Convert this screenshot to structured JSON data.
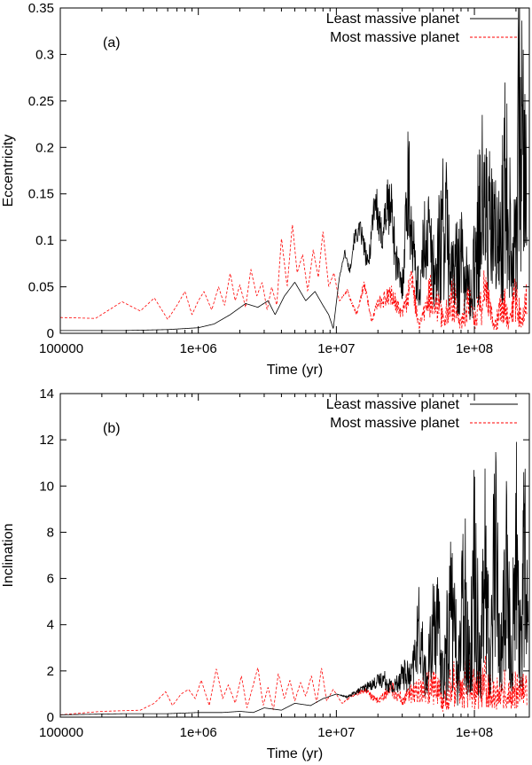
{
  "chart_data": [
    {
      "type": "line",
      "panel_label": "(a)",
      "xlabel": "Time (yr)",
      "ylabel": "Eccentricity",
      "xscale": "log",
      "xlim": [
        100000,
        250000000
      ],
      "ylim": [
        0,
        0.35
      ],
      "xticks": [
        100000,
        1000000,
        10000000,
        100000000
      ],
      "xtick_labels": [
        "100000",
        "1e+06",
        "1e+07",
        "1e+08"
      ],
      "yticks": [
        0,
        0.05,
        0.1,
        0.15,
        0.2,
        0.25,
        0.3,
        0.35
      ],
      "ytick_labels": [
        "0",
        "0.05",
        "0.1",
        "0.15",
        "0.2",
        "0.25",
        "0.3",
        "0.35"
      ],
      "grid": false,
      "legend_position": "top-right",
      "series": [
        {
          "name": "Least massive planet",
          "color": "#000000",
          "dash": "solid",
          "x": [
            100000,
            300000,
            600000,
            1000000,
            1300000,
            1700000,
            2200000,
            2700000,
            3200000,
            3600000,
            4200000,
            5000000,
            6000000,
            7000000,
            8000000,
            8800000,
            9500000,
            10500000,
            11500000,
            12500000,
            13500000,
            15000000,
            17000000,
            19000000,
            21000000,
            23000000,
            25000000,
            27000000,
            30000000,
            33000000,
            36000000,
            40000000,
            45000000,
            52000000,
            60000000,
            70000000,
            80000000,
            95000000,
            110000000,
            130000000,
            150000000,
            170000000,
            190000000,
            210000000,
            230000000,
            240000000
          ],
          "values": [
            0.003,
            0.003,
            0.004,
            0.006,
            0.01,
            0.02,
            0.032,
            0.028,
            0.035,
            0.02,
            0.04,
            0.055,
            0.035,
            0.045,
            0.03,
            0.02,
            0.005,
            0.06,
            0.09,
            0.07,
            0.11,
            0.12,
            0.08,
            0.17,
            0.12,
            0.16,
            0.17,
            0.1,
            0.06,
            0.22,
            0.12,
            0.06,
            0.17,
            0.09,
            0.2,
            0.1,
            0.13,
            0.06,
            0.23,
            0.18,
            0.14,
            0.27,
            0.13,
            0.34,
            0.32,
            0.15
          ]
        },
        {
          "name": "Most massive planet",
          "color": "#ff0000",
          "dash": "dashed",
          "x": [
            100000,
            180000,
            280000,
            380000,
            480000,
            600000,
            700000,
            800000,
            900000,
            1000000,
            1100000,
            1250000,
            1400000,
            1550000,
            1700000,
            1850000,
            2000000,
            2200000,
            2400000,
            2650000,
            2900000,
            3150000,
            3400000,
            3700000,
            4000000,
            4400000,
            4800000,
            5200000,
            5700000,
            6200000,
            6800000,
            7400000,
            8000000,
            8800000,
            9600000,
            10500000,
            12000000,
            14000000,
            16000000,
            18000000,
            20000000,
            25000000,
            30000000,
            35000000,
            40000000,
            50000000,
            60000000,
            70000000,
            80000000,
            90000000,
            100000000,
            120000000,
            140000000,
            160000000,
            180000000,
            200000000,
            220000000,
            240000000
          ],
          "values": [
            0.017,
            0.016,
            0.034,
            0.024,
            0.038,
            0.015,
            0.03,
            0.045,
            0.02,
            0.035,
            0.045,
            0.025,
            0.05,
            0.03,
            0.065,
            0.035,
            0.052,
            0.028,
            0.069,
            0.04,
            0.055,
            0.025,
            0.05,
            0.03,
            0.103,
            0.05,
            0.118,
            0.065,
            0.085,
            0.045,
            0.09,
            0.06,
            0.11,
            0.05,
            0.065,
            0.035,
            0.048,
            0.022,
            0.06,
            0.015,
            0.038,
            0.05,
            0.025,
            0.07,
            0.01,
            0.075,
            0.02,
            0.065,
            0.015,
            0.06,
            0.02,
            0.075,
            0.01,
            0.06,
            0.02,
            0.068,
            0.015,
            0.055
          ]
        }
      ]
    },
    {
      "type": "line",
      "panel_label": "(b)",
      "xlabel": "Time (yr)",
      "ylabel": "Inclination",
      "xscale": "log",
      "xlim": [
        100000,
        250000000
      ],
      "ylim": [
        0,
        14
      ],
      "xticks": [
        100000,
        1000000,
        10000000,
        100000000
      ],
      "xtick_labels": [
        "100000",
        "1e+06",
        "1e+07",
        "1e+08"
      ],
      "yticks": [
        0,
        2,
        4,
        6,
        8,
        10,
        12,
        14
      ],
      "ytick_labels": [
        "0",
        "2",
        "4",
        "6",
        "8",
        "10",
        "12",
        "14"
      ],
      "grid": false,
      "legend_position": "top-right",
      "series": [
        {
          "name": "Least massive planet",
          "color": "#000000",
          "dash": "solid",
          "x": [
            100000,
            300000,
            600000,
            1000000,
            1500000,
            2000000,
            2500000,
            3000000,
            4000000,
            5000000,
            6500000,
            8000000,
            10000000,
            12000000,
            15000000,
            18000000,
            22000000,
            26000000,
            30000000,
            35000000,
            40000000,
            45000000,
            52000000,
            60000000,
            68000000,
            76000000,
            85000000,
            92000000,
            100000000,
            110000000,
            120000000,
            130000000,
            140000000,
            155000000,
            170000000,
            185000000,
            200000000,
            215000000,
            230000000,
            245000000
          ],
          "values": [
            0.1,
            0.15,
            0.15,
            0.2,
            0.2,
            0.25,
            0.2,
            0.4,
            0.3,
            0.6,
            0.5,
            0.8,
            1.0,
            0.9,
            1.3,
            1.6,
            2.0,
            1.5,
            2.5,
            2.2,
            5.5,
            2.0,
            7.0,
            2.5,
            8.6,
            3.0,
            9.5,
            3.5,
            11.0,
            4.0,
            10.5,
            3.0,
            13.1,
            4.0,
            10.0,
            3.5,
            12.2,
            4.5,
            11.5,
            5.0
          ]
        },
        {
          "name": "Most massive planet",
          "color": "#ff0000",
          "dash": "dashed",
          "x": [
            100000,
            200000,
            380000,
            480000,
            580000,
            650000,
            750000,
            850000,
            950000,
            1050000,
            1200000,
            1350000,
            1500000,
            1650000,
            1850000,
            2050000,
            2250000,
            2450000,
            2700000,
            2950000,
            3200000,
            3500000,
            3800000,
            4200000,
            4600000,
            5000000,
            5500000,
            6000000,
            6600000,
            7200000,
            7800000,
            8500000,
            9500000,
            11000000,
            13000000,
            16000000,
            20000000,
            25000000,
            30000000,
            40000000,
            50000000,
            60000000,
            70000000,
            80000000,
            90000000,
            100000000,
            120000000,
            140000000,
            160000000,
            180000000,
            200000000,
            220000000,
            240000000
          ],
          "values": [
            0.1,
            0.25,
            0.3,
            0.6,
            1.1,
            0.5,
            1.0,
            1.2,
            0.8,
            1.6,
            0.5,
            2.1,
            0.8,
            1.4,
            0.6,
            1.8,
            0.4,
            1.2,
            2.15,
            0.5,
            1.3,
            0.3,
            1.9,
            0.8,
            1.6,
            0.7,
            1.5,
            0.9,
            1.8,
            0.6,
            2.15,
            0.7,
            1.2,
            0.6,
            1.0,
            1.3,
            0.8,
            1.5,
            1.0,
            1.7,
            2.0,
            1.2,
            2.3,
            1.5,
            2.7,
            1.8,
            2.5,
            1.4,
            2.3,
            1.5,
            2.1,
            1.6,
            2.0
          ]
        }
      ]
    }
  ]
}
